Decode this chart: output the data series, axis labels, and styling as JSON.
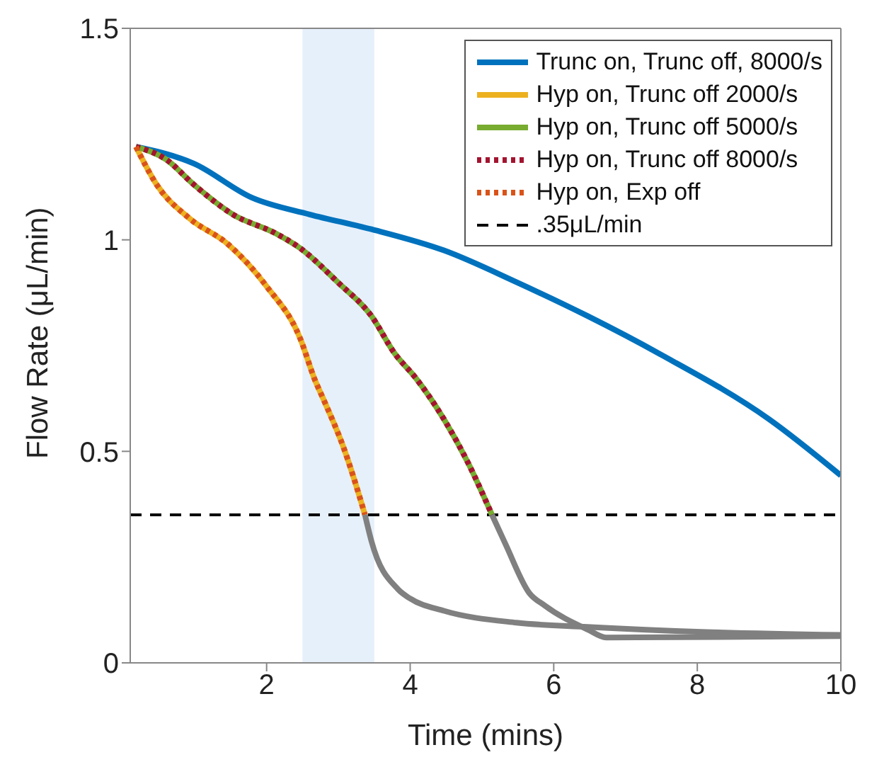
{
  "chart_data": {
    "type": "line",
    "xlabel": "Time (mins)",
    "ylabel": "Flow Rate (μL/min)",
    "xlim": [
      0.1,
      10
    ],
    "xticks": [
      2,
      4,
      6,
      8,
      10
    ],
    "ylim": [
      0,
      1.5
    ],
    "yticks": [
      0,
      0.5,
      1,
      1.5
    ],
    "grid": false,
    "legend": "top right",
    "marker": "none",
    "series": [
      {
        "name": "Trunc on, Trunc off, 8000/s",
        "color": "#0072bd",
        "line_style": "solid",
        "x": [
          0.18,
          0.99,
          1.79,
          2.6,
          3.46,
          4.47,
          5.48,
          6.47,
          7.48,
          9.0,
          10
        ],
        "values": [
          1.22,
          1.18,
          1.1,
          1.06,
          1.025,
          0.975,
          0.9,
          0.82,
          0.73,
          0.576,
          0.443
        ]
      },
      {
        "name": "Hyp on, Trunc off 2000/s",
        "color": "#edb120",
        "line_style": "solid",
        "x": [
          0.18,
          0.47,
          0.93,
          1.46,
          2.0,
          2.47,
          2.67,
          2.8,
          3.07,
          3.33,
          3.37
        ],
        "values": [
          1.22,
          1.13,
          1.05,
          0.99,
          0.89,
          0.766,
          0.67,
          0.62,
          0.51,
          0.373,
          0.35
        ]
      },
      {
        "name": "Hyp on, Trunc off 5000/s",
        "color": "#77ac30",
        "line_style": "solid",
        "x": [
          0.18,
          0.6,
          0.99,
          1.53,
          2.13,
          2.47,
          2.99,
          3.46,
          3.79,
          4.07,
          4.47,
          4.8,
          5.14
        ],
        "values": [
          1.22,
          1.19,
          1.13,
          1.06,
          1.015,
          0.98,
          0.9,
          0.82,
          0.73,
          0.675,
          0.576,
          0.475,
          0.35
        ]
      },
      {
        "name": "Hyp on, Trunc off 8000/s",
        "color": "#a2142f",
        "line_style": "dotted",
        "x": [
          0.18,
          0.6,
          0.99,
          1.53,
          2.13,
          2.47,
          2.99,
          3.46,
          3.79,
          4.07,
          4.47,
          4.8,
          5.14
        ],
        "values": [
          1.22,
          1.19,
          1.13,
          1.06,
          1.015,
          0.98,
          0.9,
          0.82,
          0.73,
          0.675,
          0.576,
          0.475,
          0.35
        ]
      },
      {
        "name": "Hyp on, Exp off",
        "color": "#d95319",
        "line_style": "dotted",
        "x": [
          0.18,
          0.47,
          0.93,
          1.46,
          2.0,
          2.47,
          2.67,
          2.8,
          3.07,
          3.33,
          3.37
        ],
        "values": [
          1.22,
          1.13,
          1.05,
          0.99,
          0.89,
          0.766,
          0.67,
          0.62,
          0.51,
          0.373,
          0.35
        ]
      },
      {
        "color": "#808080",
        "line_style": "solid",
        "x": [
          3.37,
          3.46,
          3.83,
          4.0,
          4.47,
          5.48,
          6.47,
          8.13,
          10
        ],
        "values": [
          0.35,
          0.288,
          0.174,
          0.152,
          0.123,
          0.095,
          0.085,
          0.073,
          0.066
        ]
      },
      {
        "color": "#808080",
        "line_style": "solid",
        "x": [
          5.14,
          5.33,
          5.66,
          5.87,
          6.47,
          6.73,
          10
        ],
        "values": [
          0.35,
          0.28,
          0.165,
          0.136,
          0.079,
          0.06,
          0.063
        ]
      }
    ],
    "ref_lines": [
      {
        "axis": "y",
        "value": 0.35,
        "label": ".35μL/min",
        "color": "#000000",
        "line_style": "dashed"
      }
    ],
    "bands": [
      {
        "axis": "x",
        "from": 2.5,
        "to": 3.5,
        "color": "#e6f0fb"
      }
    ]
  }
}
